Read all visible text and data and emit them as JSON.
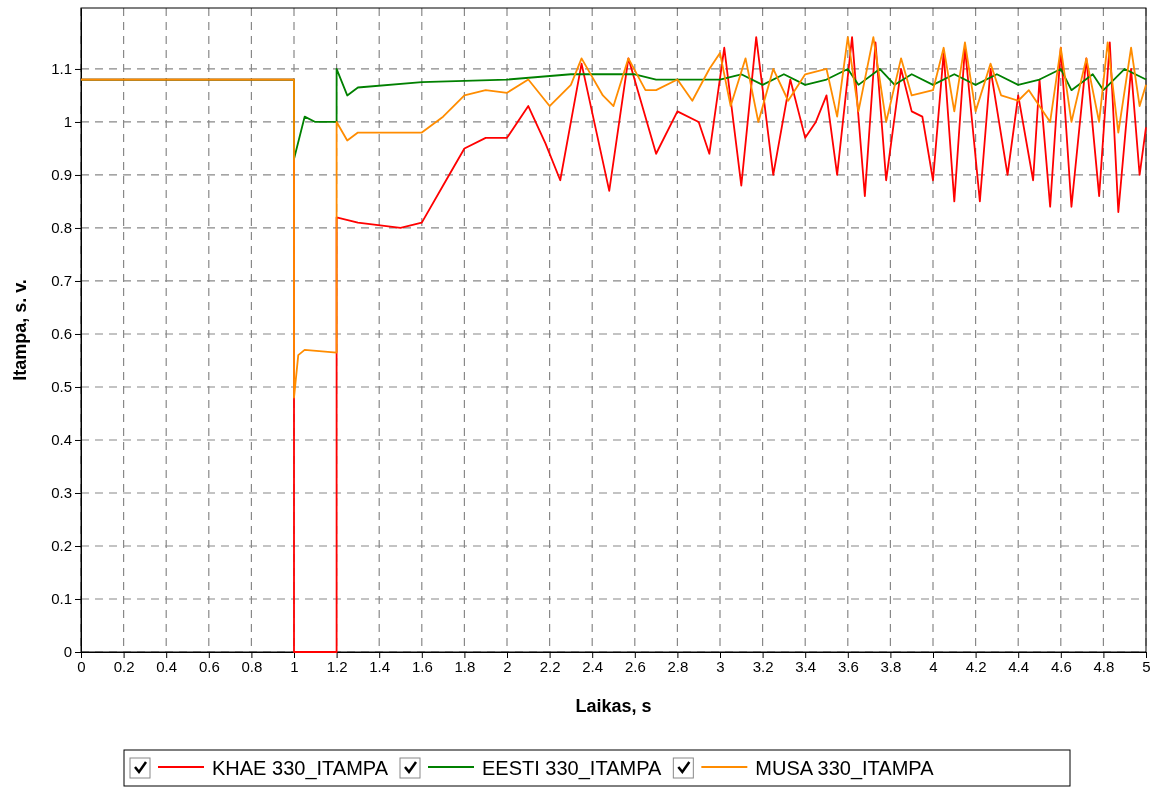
{
  "chart_data": {
    "type": "line",
    "xlabel": "Laikas, s",
    "ylabel": "Itampa, s. v.",
    "xlim": [
      0,
      5
    ],
    "ylim": [
      0,
      1.215
    ],
    "xticks": [
      0,
      0.2,
      0.4,
      0.6,
      0.8,
      1,
      1.2,
      1.4,
      1.6,
      1.8,
      2,
      2.2,
      2.4,
      2.6,
      2.8,
      3,
      3.2,
      3.4,
      3.6,
      3.8,
      4,
      4.2,
      4.4,
      4.6,
      4.8,
      5
    ],
    "yticks": [
      0,
      0.1,
      0.2,
      0.3,
      0.4,
      0.5,
      0.6,
      0.7,
      0.8,
      0.9,
      1,
      1.1
    ],
    "grid": true,
    "legend": "bottom",
    "line_style": "solid",
    "marker": "none",
    "series": [
      {
        "name": "KHAE 330_ITAMPA",
        "color": "#ff0000",
        "x": [
          0,
          1,
          1,
          1.2,
          1.2,
          1.3,
          1.5,
          1.6,
          1.7,
          1.8,
          1.9,
          2.0,
          2.1,
          2.18,
          2.25,
          2.3,
          2.35,
          2.48,
          2.57,
          2.7,
          2.8,
          2.9,
          2.95,
          3.02,
          3.1,
          3.17,
          3.25,
          3.33,
          3.4,
          3.45,
          3.5,
          3.55,
          3.62,
          3.68,
          3.73,
          3.78,
          3.85,
          3.9,
          3.95,
          4.0,
          4.05,
          4.1,
          4.15,
          4.22,
          4.27,
          4.35,
          4.4,
          4.47,
          4.5,
          4.55,
          4.6,
          4.65,
          4.72,
          4.78,
          4.83,
          4.87,
          4.93,
          4.97,
          5.0
        ],
        "values": [
          1.08,
          1.08,
          0,
          0,
          0.82,
          0.81,
          0.8,
          0.81,
          0.88,
          0.95,
          0.97,
          0.97,
          1.03,
          0.96,
          0.89,
          1.0,
          1.11,
          0.87,
          1.12,
          0.94,
          1.02,
          1.0,
          0.94,
          1.14,
          0.88,
          1.16,
          0.9,
          1.08,
          0.97,
          1.0,
          1.05,
          0.9,
          1.16,
          0.86,
          1.15,
          0.89,
          1.1,
          1.02,
          1.01,
          0.89,
          1.13,
          0.85,
          1.14,
          0.85,
          1.1,
          0.9,
          1.05,
          0.89,
          1.08,
          0.84,
          1.14,
          0.84,
          1.12,
          0.86,
          1.15,
          0.83,
          1.1,
          0.9,
          0.99
        ]
      },
      {
        "name": "EESTI 330_ITAMPA",
        "color": "#008000",
        "x": [
          0,
          1,
          1,
          1.05,
          1.1,
          1.2,
          1.2,
          1.25,
          1.3,
          1.6,
          2.0,
          2.3,
          2.45,
          2.6,
          2.7,
          3.0,
          3.1,
          3.2,
          3.3,
          3.4,
          3.5,
          3.6,
          3.65,
          3.75,
          3.82,
          3.9,
          4.0,
          4.1,
          4.2,
          4.3,
          4.4,
          4.5,
          4.6,
          4.65,
          4.75,
          4.8,
          4.9,
          5.0
        ],
        "values": [
          1.08,
          1.08,
          0.93,
          1.01,
          1.0,
          1.0,
          1.1,
          1.05,
          1.065,
          1.075,
          1.08,
          1.09,
          1.09,
          1.09,
          1.08,
          1.08,
          1.09,
          1.07,
          1.09,
          1.07,
          1.08,
          1.1,
          1.07,
          1.1,
          1.07,
          1.09,
          1.07,
          1.09,
          1.07,
          1.09,
          1.07,
          1.08,
          1.1,
          1.06,
          1.09,
          1.06,
          1.1,
          1.08
        ]
      },
      {
        "name": "MUSA 330_ITAMPA",
        "color": "#ff8c00",
        "x": [
          0,
          1,
          1,
          1.02,
          1.05,
          1.2,
          1.2,
          1.25,
          1.3,
          1.6,
          1.7,
          1.8,
          1.9,
          2.0,
          2.1,
          2.2,
          2.3,
          2.35,
          2.45,
          2.5,
          2.57,
          2.65,
          2.7,
          2.8,
          2.87,
          2.95,
          3.0,
          3.05,
          3.12,
          3.18,
          3.25,
          3.32,
          3.4,
          3.5,
          3.55,
          3.6,
          3.65,
          3.72,
          3.78,
          3.85,
          3.9,
          4.0,
          4.05,
          4.1,
          4.15,
          4.2,
          4.27,
          4.32,
          4.4,
          4.45,
          4.55,
          4.6,
          4.65,
          4.72,
          4.78,
          4.82,
          4.87,
          4.93,
          4.97,
          5.0
        ],
        "values": [
          1.08,
          1.08,
          0.48,
          0.56,
          0.57,
          0.565,
          1.0,
          0.965,
          0.98,
          0.98,
          1.01,
          1.05,
          1.06,
          1.055,
          1.08,
          1.03,
          1.07,
          1.12,
          1.05,
          1.03,
          1.12,
          1.06,
          1.06,
          1.08,
          1.04,
          1.1,
          1.13,
          1.03,
          1.12,
          1.0,
          1.1,
          1.04,
          1.09,
          1.1,
          1.01,
          1.16,
          1.02,
          1.16,
          1.0,
          1.12,
          1.05,
          1.06,
          1.14,
          1.02,
          1.15,
          1.02,
          1.11,
          1.05,
          1.04,
          1.06,
          1.0,
          1.14,
          1.0,
          1.12,
          1.0,
          1.15,
          0.98,
          1.14,
          1.03,
          1.07
        ]
      }
    ]
  }
}
